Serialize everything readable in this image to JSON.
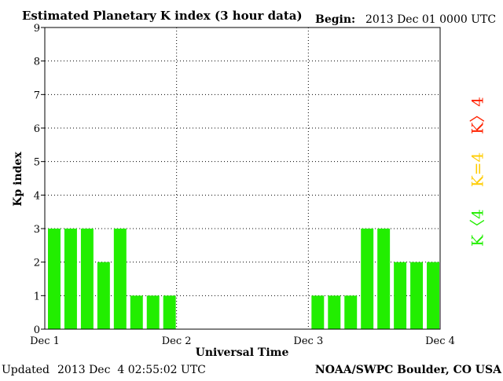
{
  "header": {
    "title": "Estimated Planetary K index (3 hour data)",
    "begin_label": "Begin:",
    "begin_value": "2013 Dec 01 0000 UTC"
  },
  "footer": {
    "updated_label": "Updated",
    "updated_value": "2013 Dec  4 02:55:02 UTC",
    "source": "NOAA/SWPC Boulder, CO USA"
  },
  "colors": {
    "k_below_4": "#22ee00",
    "k_equal_4": "#ffcc00",
    "k_above_4": "#ff2200"
  },
  "chart_data": {
    "type": "bar",
    "title": "Estimated Planetary K index (3 hour data)",
    "xlabel": "Universal Time",
    "ylabel": "Kp index",
    "ylim": [
      0,
      9
    ],
    "yticks": [
      "0",
      "1",
      "2",
      "3",
      "4",
      "5",
      "6",
      "7",
      "8",
      "9"
    ],
    "xticks": [
      "Dec 1",
      "Dec 2",
      "Dec 3",
      "Dec 4"
    ],
    "grid": true,
    "legend": [
      {
        "label": "K<4",
        "text": "K〈4",
        "color": "#22ee00"
      },
      {
        "label": "K=4",
        "text": "K=4",
        "color": "#ffcc00"
      },
      {
        "label": "K>4",
        "text": "K〉4",
        "color": "#ff2200"
      }
    ],
    "legend_position": "right",
    "intervals_per_day": 8,
    "bars": [
      {
        "day": "Dec 1",
        "slot": 0,
        "value": 3
      },
      {
        "day": "Dec 1",
        "slot": 1,
        "value": 3
      },
      {
        "day": "Dec 1",
        "slot": 2,
        "value": 3
      },
      {
        "day": "Dec 1",
        "slot": 3,
        "value": 2
      },
      {
        "day": "Dec 1",
        "slot": 4,
        "value": 3
      },
      {
        "day": "Dec 1",
        "slot": 5,
        "value": 1
      },
      {
        "day": "Dec 1",
        "slot": 6,
        "value": 1
      },
      {
        "day": "Dec 1",
        "slot": 7,
        "value": 1
      },
      {
        "day": "Dec 3",
        "slot": 0,
        "value": 1
      },
      {
        "day": "Dec 3",
        "slot": 1,
        "value": 1
      },
      {
        "day": "Dec 3",
        "slot": 2,
        "value": 1
      },
      {
        "day": "Dec 3",
        "slot": 3,
        "value": 3
      },
      {
        "day": "Dec 3",
        "slot": 4,
        "value": 3
      },
      {
        "day": "Dec 3",
        "slot": 5,
        "value": 2
      },
      {
        "day": "Dec 3",
        "slot": 6,
        "value": 2
      },
      {
        "day": "Dec 3",
        "slot": 7,
        "value": 2
      }
    ]
  }
}
